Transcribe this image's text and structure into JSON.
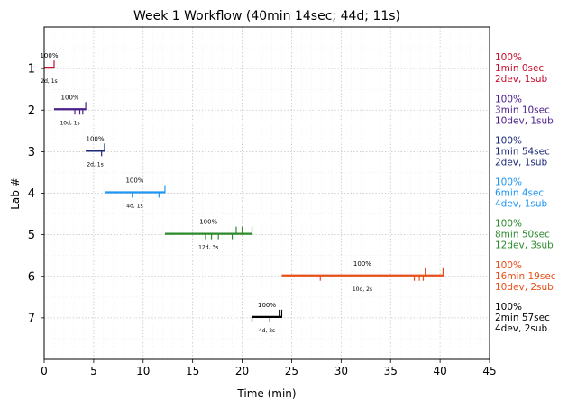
{
  "chart_data": {
    "type": "timeline",
    "title": "Week 1 Workflow (40min 14sec; 44d; 11s)",
    "xlabel": "Time (min)",
    "ylabel": "Lab #",
    "xlim": [
      0,
      45
    ],
    "ylim": [
      0,
      8
    ],
    "x_ticks": [
      0,
      5,
      10,
      15,
      20,
      25,
      30,
      35,
      40,
      45
    ],
    "grid": true,
    "labs": [
      {
        "lab": 1,
        "start": 0.0,
        "end": 1.0,
        "color": "#c8102e",
        "dev_marks": [],
        "sub_marks": [
          1.0
        ],
        "pct_label": "100%",
        "count_label": "2d, 1s",
        "right_lines": [
          "100%",
          "1min 0sec",
          "2dev, 1sub"
        ]
      },
      {
        "lab": 2,
        "start": 1.0,
        "end": 4.2,
        "color": "#4b1e8c",
        "dev_marks": [
          3.1,
          3.6,
          3.9
        ],
        "sub_marks": [
          4.2
        ],
        "pct_label": "100%",
        "count_label": "10d, 1s",
        "right_lines": [
          "100%",
          "3min 10sec",
          "10dev, 1sub"
        ]
      },
      {
        "lab": 3,
        "start": 4.2,
        "end": 6.1,
        "color": "#1f2a7a",
        "dev_marks": [
          5.8
        ],
        "sub_marks": [
          6.1
        ],
        "pct_label": "100%",
        "count_label": "2d, 1s",
        "right_lines": [
          "100%",
          "1min 54sec",
          "2dev, 1sub"
        ]
      },
      {
        "lab": 4,
        "start": 6.1,
        "end": 12.2,
        "color": "#2196f3",
        "dev_marks": [
          8.9,
          11.6
        ],
        "sub_marks": [
          12.2
        ],
        "pct_label": "100%",
        "count_label": "4d, 1s",
        "right_lines": [
          "100%",
          "6min 4sec",
          "4dev, 1sub"
        ]
      },
      {
        "lab": 5,
        "start": 12.2,
        "end": 21.0,
        "color": "#2e8b2e",
        "dev_marks": [
          16.3,
          16.9,
          17.6,
          19.0
        ],
        "sub_marks": [
          19.4,
          20.0,
          21.0
        ],
        "pct_label": "100%",
        "count_label": "12d, 3s",
        "right_lines": [
          "100%",
          "8min 50sec",
          "12dev, 3sub"
        ]
      },
      {
        "lab": 6,
        "start": 24.0,
        "end": 40.3,
        "color": "#e8501a",
        "dev_marks": [
          27.9,
          37.4,
          37.9,
          38.3
        ],
        "sub_marks": [
          38.5,
          40.3
        ],
        "pct_label": "100%",
        "count_label": "10d, 2s",
        "right_lines": [
          "100%",
          "16min 19sec",
          "10dev, 2sub"
        ]
      },
      {
        "lab": 7,
        "start": 21.0,
        "end": 24.0,
        "color": "#000000",
        "dev_marks": [
          21.0,
          22.8
        ],
        "sub_marks": [
          23.8,
          24.0
        ],
        "pct_label": "100%",
        "count_label": "4d, 2s",
        "right_lines": [
          "100%",
          "2min 57sec",
          "4dev, 2sub"
        ]
      }
    ]
  }
}
